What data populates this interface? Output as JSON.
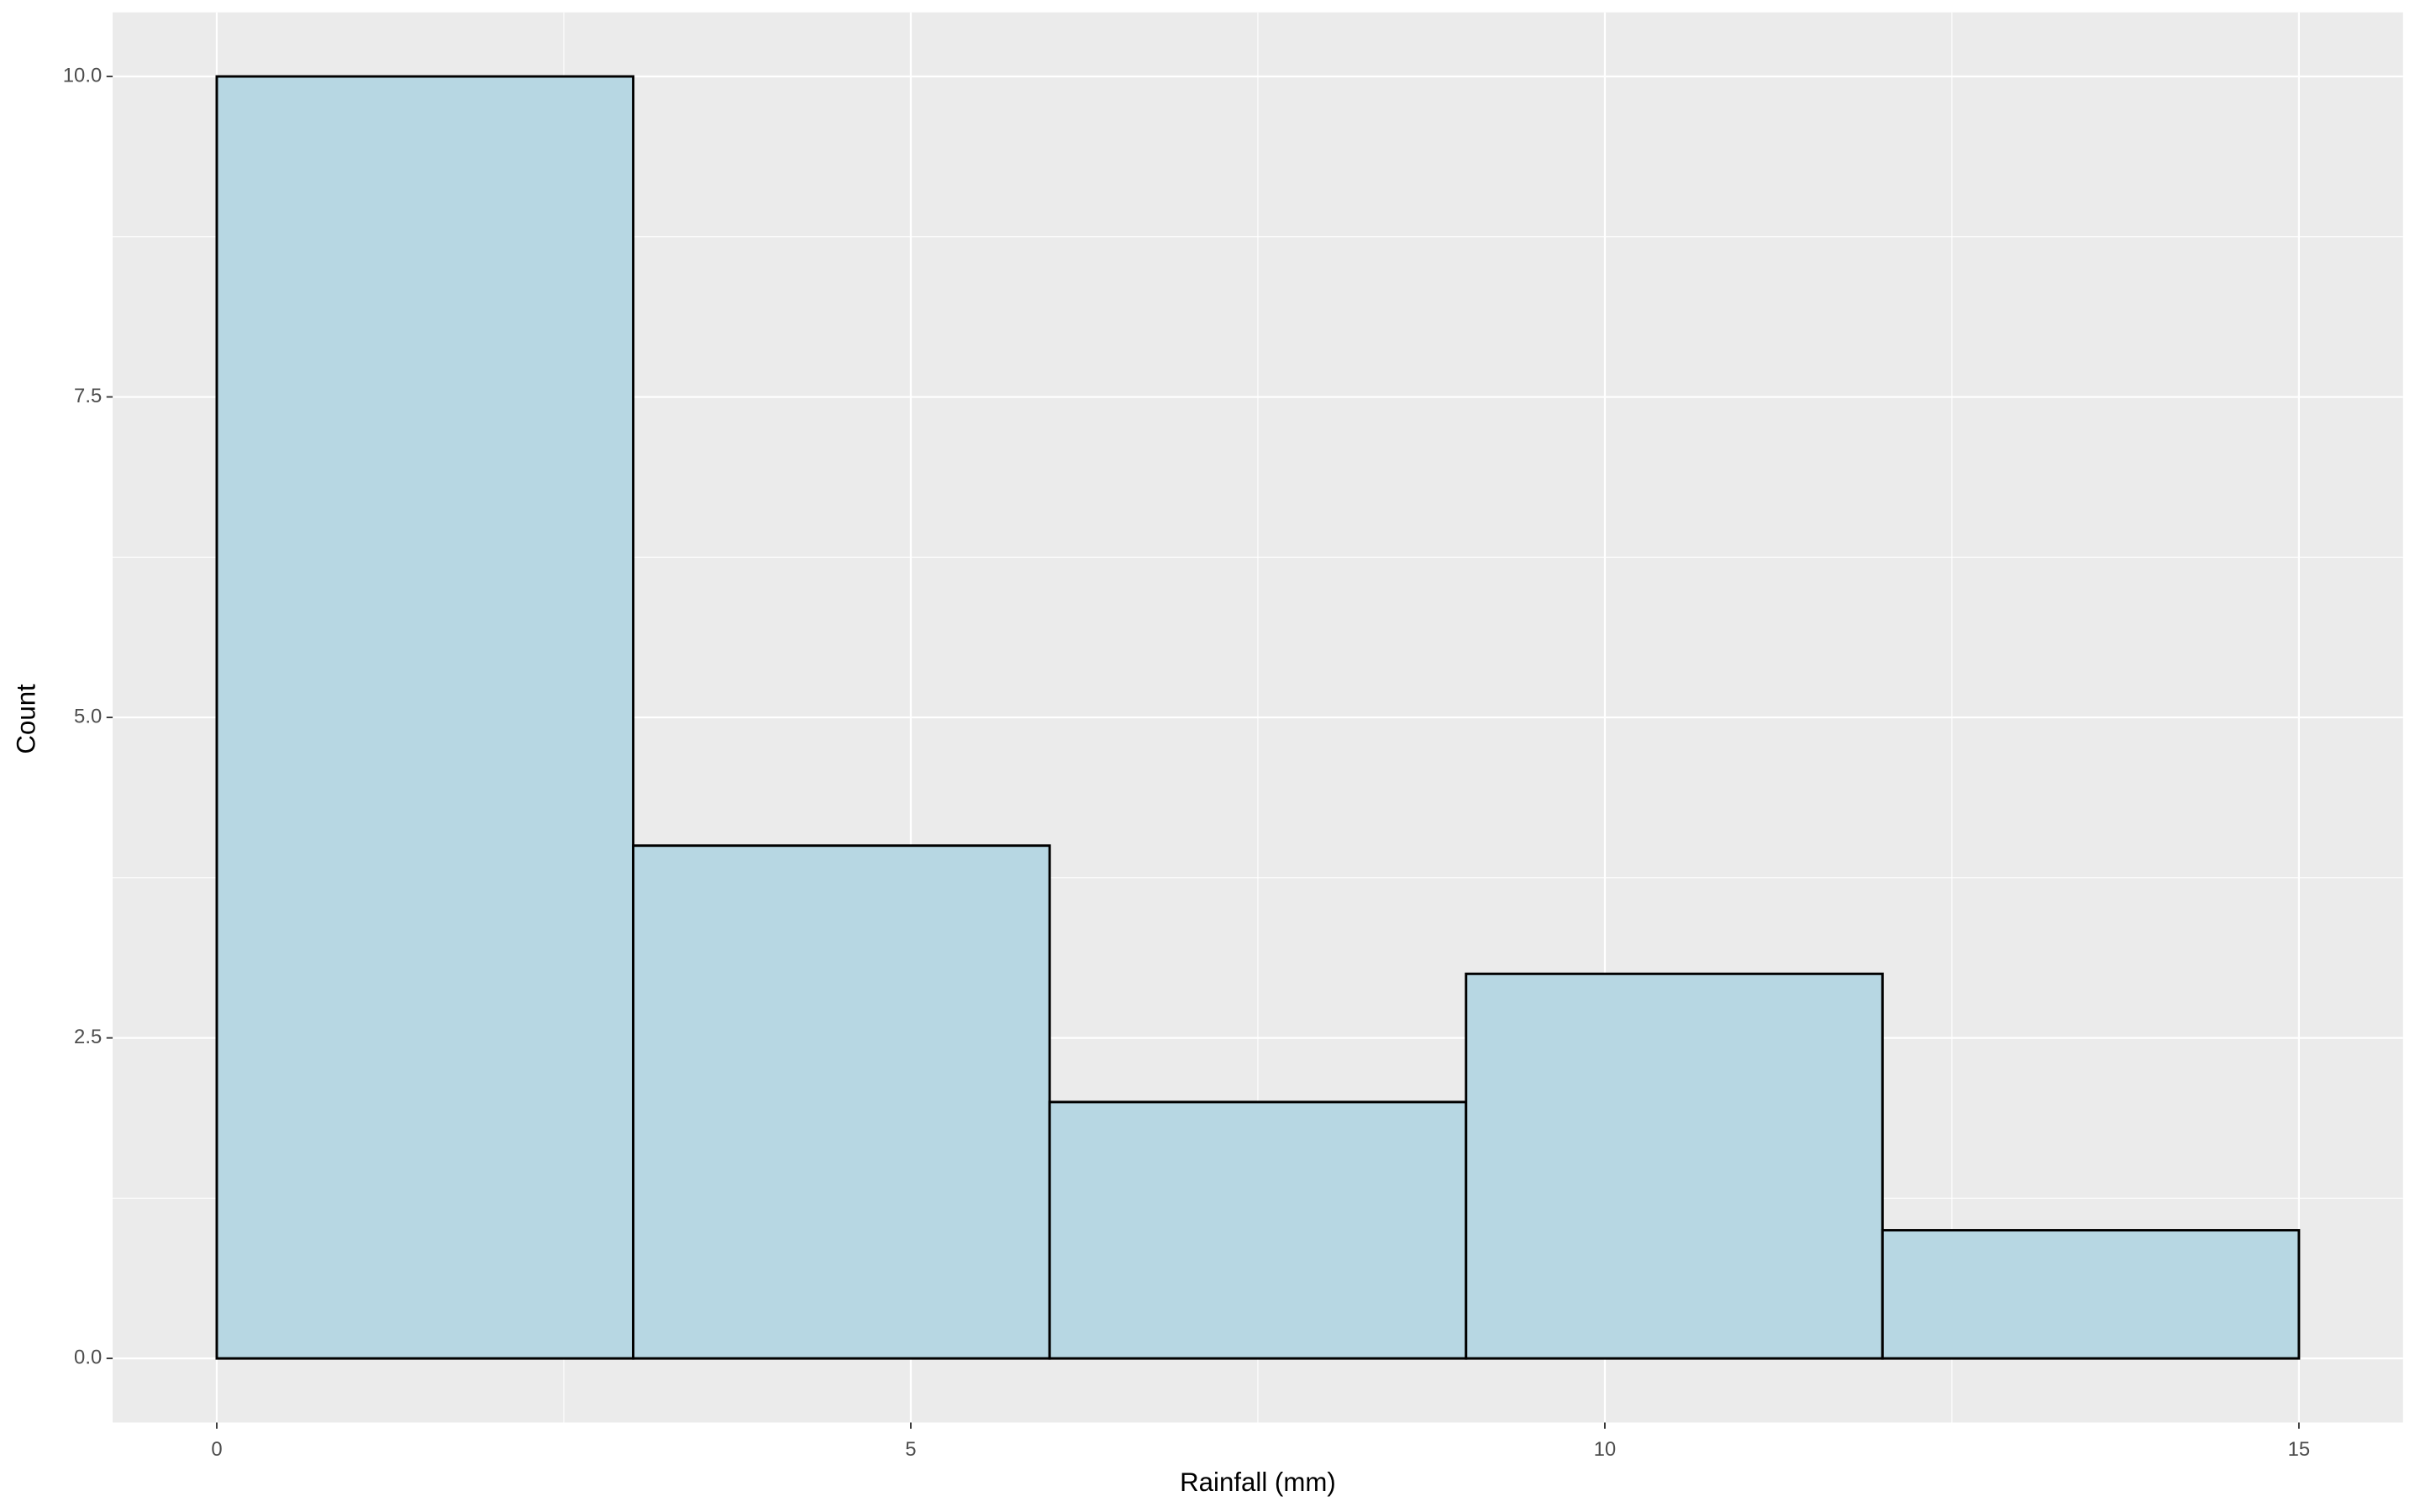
{
  "chart_data": {
    "type": "histogram",
    "x_label": "Rainfall (mm)",
    "y_label": "Count",
    "bins": [
      0,
      3,
      6,
      9,
      12,
      15
    ],
    "values": [
      10,
      4,
      2,
      3,
      1
    ],
    "color": "#b7d7e3",
    "edge_color": "#000000",
    "xlim": [
      -0.75,
      15.75
    ],
    "xticks": [
      0,
      5,
      10,
      15
    ],
    "ylim": [
      -0.5,
      10.5
    ],
    "yticks": [
      {
        "value": 0,
        "label": "0.0"
      },
      {
        "value": 2.5,
        "label": "2.5"
      },
      {
        "value": 5,
        "label": "5.0"
      },
      {
        "value": 7.5,
        "label": "7.5"
      },
      {
        "value": 10,
        "label": "10.0"
      }
    ],
    "grid": true
  }
}
